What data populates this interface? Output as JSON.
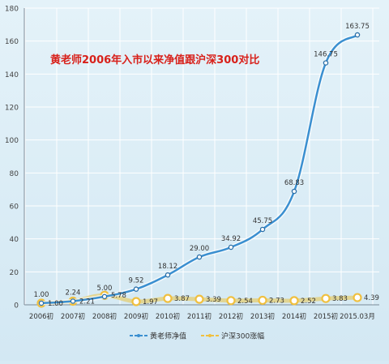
{
  "chart_data": {
    "type": "line",
    "title": "黄老师2006年入市以来净值跟沪深300对比",
    "categories": [
      "2006初",
      "2007初",
      "2008初",
      "2009初",
      "2010初",
      "2011初",
      "2012初",
      "2013初",
      "2014初",
      "2015初",
      "2015.03月"
    ],
    "series": [
      {
        "name": "黄老师净值",
        "color": "#3a8fd0",
        "values": [
          1.0,
          2.24,
          5.0,
          9.52,
          18.12,
          29.0,
          34.92,
          45.75,
          68.83,
          146.75,
          163.75
        ],
        "labels": [
          "1.00",
          "2.24",
          "5.00",
          "9.52",
          "18.12",
          "29.00",
          "34.92",
          "45.75",
          "68.83",
          "146.75",
          "163.75"
        ]
      },
      {
        "name": "沪深300涨幅",
        "color": "#f0c040",
        "values": [
          1.0,
          2.21,
          5.78,
          1.97,
          3.87,
          3.39,
          2.54,
          2.73,
          2.52,
          3.83,
          4.39
        ],
        "labels": [
          "1.00",
          "2.21",
          "5.78",
          "1.97",
          "3.87",
          "3.39",
          "2.54",
          "2.73",
          "2.52",
          "3.83",
          "4.39"
        ]
      }
    ],
    "ylim": [
      0,
      180
    ],
    "yticks": [
      0,
      20,
      40,
      60,
      80,
      100,
      120,
      140,
      160,
      180
    ],
    "grid": true,
    "legend_position": "bottom"
  }
}
